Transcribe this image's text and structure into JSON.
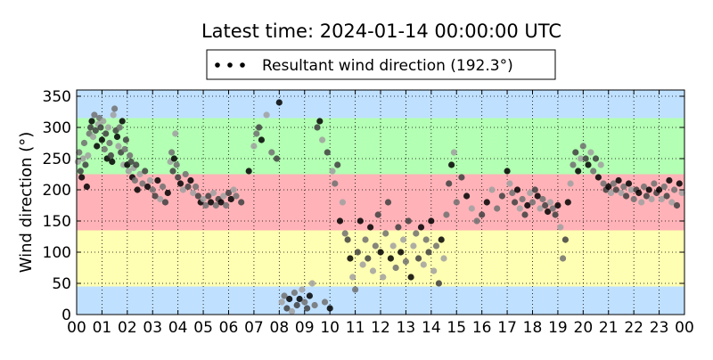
{
  "chart_data": {
    "type": "scatter",
    "title": "Latest time: 2024-01-14 00:00:00 UTC",
    "ylabel": "Wind direction (°)",
    "xlabel": "",
    "xlim": [
      0,
      24
    ],
    "ylim": [
      0,
      360
    ],
    "x_ticks": [
      0,
      1,
      2,
      3,
      4,
      5,
      6,
      7,
      8,
      9,
      10,
      11,
      12,
      13,
      14,
      15,
      16,
      17,
      18,
      19,
      20,
      21,
      22,
      23,
      24
    ],
    "x_tick_labels": [
      "00",
      "01",
      "02",
      "03",
      "04",
      "05",
      "06",
      "07",
      "08",
      "09",
      "10",
      "11",
      "12",
      "13",
      "14",
      "15",
      "16",
      "17",
      "18",
      "19",
      "20",
      "21",
      "22",
      "23",
      "00"
    ],
    "y_ticks": [
      0,
      50,
      100,
      150,
      200,
      250,
      300,
      350
    ],
    "y_tick_labels": [
      "0",
      "50",
      "100",
      "150",
      "200",
      "250",
      "300",
      "350"
    ],
    "grid": true,
    "legend": {
      "placement": "top-center",
      "entries": [
        {
          "label": "Resultant wind direction (192.3°)",
          "marker": "dots",
          "color": "#000000"
        }
      ]
    },
    "bands": [
      {
        "from": 0,
        "to": 45,
        "color": "#bfe0ff"
      },
      {
        "from": 45,
        "to": 135,
        "color": "#ffffb3"
      },
      {
        "from": 135,
        "to": 225,
        "color": "#ffb3b8"
      },
      {
        "from": 225,
        "to": 315,
        "color": "#b3ffb3"
      },
      {
        "from": 315,
        "to": 360,
        "color": "#bfe0ff"
      }
    ],
    "series": [
      {
        "marker_colors": [
          "#000000",
          "#404040",
          "#707070",
          "#a0a0a0"
        ],
        "points": [
          [
            0.05,
            245
          ],
          [
            0.1,
            260
          ],
          [
            0.15,
            230
          ],
          [
            0.2,
            220
          ],
          [
            0.25,
            250
          ],
          [
            0.3,
            275
          ],
          [
            0.35,
            240
          ],
          [
            0.4,
            205
          ],
          [
            0.45,
            255
          ],
          [
            0.5,
            290
          ],
          [
            0.55,
            300
          ],
          [
            0.6,
            310
          ],
          [
            0.65,
            285
          ],
          [
            0.7,
            320
          ],
          [
            0.75,
            295
          ],
          [
            0.8,
            270
          ],
          [
            0.85,
            305
          ],
          [
            0.9,
            315
          ],
          [
            0.95,
            300
          ],
          [
            1.0,
            280
          ],
          [
            1.05,
            310
          ],
          [
            1.1,
            265
          ],
          [
            1.15,
            290
          ],
          [
            1.2,
            250
          ],
          [
            1.25,
            300
          ],
          [
            1.3,
            275
          ],
          [
            1.35,
            255
          ],
          [
            1.4,
            245
          ],
          [
            1.45,
            320
          ],
          [
            1.5,
            330
          ],
          [
            1.55,
            295
          ],
          [
            1.6,
            285
          ],
          [
            1.65,
            270
          ],
          [
            1.7,
            300
          ],
          [
            1.75,
            260
          ],
          [
            1.8,
            310
          ],
          [
            1.85,
            240
          ],
          [
            1.9,
            265
          ],
          [
            1.95,
            280
          ],
          [
            2.0,
            240
          ],
          [
            2.05,
            230
          ],
          [
            2.1,
            255
          ],
          [
            2.15,
            245
          ],
          [
            2.2,
            220
          ],
          [
            2.25,
            235
          ],
          [
            2.3,
            215
          ],
          [
            2.35,
            240
          ],
          [
            2.4,
            200
          ],
          [
            2.5,
            225
          ],
          [
            2.6,
            210
          ],
          [
            2.7,
            230
          ],
          [
            2.8,
            205
          ],
          [
            2.9,
            215
          ],
          [
            3.0,
            200
          ],
          [
            3.1,
            190
          ],
          [
            3.2,
            215
          ],
          [
            3.3,
            185
          ],
          [
            3.4,
            205
          ],
          [
            3.5,
            180
          ],
          [
            3.6,
            195
          ],
          [
            3.7,
            245
          ],
          [
            3.75,
            260
          ],
          [
            3.8,
            230
          ],
          [
            3.85,
            250
          ],
          [
            3.9,
            290
          ],
          [
            3.95,
            240
          ],
          [
            4.0,
            220
          ],
          [
            4.1,
            210
          ],
          [
            4.2,
            200
          ],
          [
            4.3,
            225
          ],
          [
            4.4,
            205
          ],
          [
            4.5,
            215
          ],
          [
            4.6,
            195
          ],
          [
            4.7,
            205
          ],
          [
            4.8,
            190
          ],
          [
            4.9,
            180
          ],
          [
            5.0,
            185
          ],
          [
            5.1,
            175
          ],
          [
            5.2,
            190
          ],
          [
            5.3,
            180
          ],
          [
            5.4,
            195
          ],
          [
            5.5,
            175
          ],
          [
            5.6,
            185
          ],
          [
            5.7,
            180
          ],
          [
            5.8,
            190
          ],
          [
            5.9,
            175
          ],
          [
            6.0,
            195
          ],
          [
            6.1,
            185
          ],
          [
            6.2,
            200
          ],
          [
            6.3,
            190
          ],
          [
            6.5,
            180
          ],
          [
            6.8,
            230
          ],
          [
            7.0,
            270
          ],
          [
            7.1,
            290
          ],
          [
            7.2,
            300
          ],
          [
            7.3,
            280
          ],
          [
            7.5,
            320
          ],
          [
            7.7,
            260
          ],
          [
            7.9,
            250
          ],
          [
            8.0,
            340
          ],
          [
            8.1,
            20
          ],
          [
            8.2,
            30
          ],
          [
            8.3,
            10
          ],
          [
            8.4,
            25
          ],
          [
            8.5,
            5
          ],
          [
            8.6,
            35
          ],
          [
            8.7,
            15
          ],
          [
            8.8,
            25
          ],
          [
            8.9,
            40
          ],
          [
            9.0,
            20
          ],
          [
            9.1,
            10
          ],
          [
            9.2,
            30
          ],
          [
            9.3,
            50
          ],
          [
            9.4,
            15
          ],
          [
            9.5,
            300
          ],
          [
            9.6,
            310
          ],
          [
            9.7,
            280
          ],
          [
            9.8,
            20
          ],
          [
            9.9,
            260
          ],
          [
            10.0,
            10
          ],
          [
            10.1,
            230
          ],
          [
            10.2,
            210
          ],
          [
            10.3,
            240
          ],
          [
            10.4,
            150
          ],
          [
            10.5,
            180
          ],
          [
            10.6,
            130
          ],
          [
            10.7,
            120
          ],
          [
            10.8,
            90
          ],
          [
            10.9,
            60
          ],
          [
            11.0,
            40
          ],
          [
            11.1,
            100
          ],
          [
            11.2,
            150
          ],
          [
            11.3,
            80
          ],
          [
            11.4,
            120
          ],
          [
            11.5,
            90
          ],
          [
            11.6,
            140
          ],
          [
            11.7,
            70
          ],
          [
            11.8,
            110
          ],
          [
            11.9,
            160
          ],
          [
            12.0,
            100
          ],
          [
            12.1,
            60
          ],
          [
            12.2,
            130
          ],
          [
            12.3,
            180
          ],
          [
            12.4,
            90
          ],
          [
            12.5,
            110
          ],
          [
            12.6,
            75
          ],
          [
            12.7,
            140
          ],
          [
            12.8,
            100
          ],
          [
            12.9,
            120
          ],
          [
            13.0,
            85
          ],
          [
            13.1,
            150
          ],
          [
            13.2,
            60
          ],
          [
            13.3,
            110
          ],
          [
            13.4,
            130
          ],
          [
            13.5,
            90
          ],
          [
            13.6,
            140
          ],
          [
            13.7,
            80
          ],
          [
            13.8,
            120
          ],
          [
            13.9,
            100
          ],
          [
            14.0,
            150
          ],
          [
            14.1,
            70
          ],
          [
            14.2,
            110
          ],
          [
            14.3,
            50
          ],
          [
            14.4,
            120
          ],
          [
            14.5,
            90
          ],
          [
            14.6,
            160
          ],
          [
            14.7,
            210
          ],
          [
            14.8,
            240
          ],
          [
            14.9,
            260
          ],
          [
            15.0,
            180
          ],
          [
            15.2,
            220
          ],
          [
            15.4,
            190
          ],
          [
            15.6,
            170
          ],
          [
            15.8,
            150
          ],
          [
            16.0,
            160
          ],
          [
            16.2,
            180
          ],
          [
            16.4,
            200
          ],
          [
            16.6,
            170
          ],
          [
            16.8,
            190
          ],
          [
            17.0,
            230
          ],
          [
            17.1,
            210
          ],
          [
            17.2,
            195
          ],
          [
            17.3,
            180
          ],
          [
            17.4,
            200
          ],
          [
            17.5,
            170
          ],
          [
            17.6,
            185
          ],
          [
            17.7,
            160
          ],
          [
            17.8,
            175
          ],
          [
            17.9,
            195
          ],
          [
            18.0,
            180
          ],
          [
            18.1,
            200
          ],
          [
            18.2,
            190
          ],
          [
            18.3,
            170
          ],
          [
            18.4,
            185
          ],
          [
            18.5,
            175
          ],
          [
            18.6,
            165
          ],
          [
            18.7,
            180
          ],
          [
            18.8,
            170
          ],
          [
            18.9,
            160
          ],
          [
            19.0,
            175
          ],
          [
            19.1,
            140
          ],
          [
            19.2,
            90
          ],
          [
            19.3,
            120
          ],
          [
            19.4,
            180
          ],
          [
            19.5,
            210
          ],
          [
            19.6,
            240
          ],
          [
            19.7,
            260
          ],
          [
            19.8,
            230
          ],
          [
            19.9,
            250
          ],
          [
            20.0,
            270
          ],
          [
            20.1,
            250
          ],
          [
            20.2,
            240
          ],
          [
            20.3,
            260
          ],
          [
            20.4,
            230
          ],
          [
            20.5,
            250
          ],
          [
            20.6,
            220
          ],
          [
            20.7,
            240
          ],
          [
            20.8,
            210
          ],
          [
            20.9,
            200
          ],
          [
            21.0,
            205
          ],
          [
            21.1,
            195
          ],
          [
            21.2,
            210
          ],
          [
            21.3,
            200
          ],
          [
            21.4,
            215
          ],
          [
            21.5,
            195
          ],
          [
            21.6,
            205
          ],
          [
            21.7,
            190
          ],
          [
            21.8,
            210
          ],
          [
            21.9,
            200
          ],
          [
            22.0,
            185
          ],
          [
            22.1,
            200
          ],
          [
            22.2,
            195
          ],
          [
            22.3,
            180
          ],
          [
            22.4,
            205
          ],
          [
            22.5,
            190
          ],
          [
            22.6,
            200
          ],
          [
            22.7,
            185
          ],
          [
            22.8,
            210
          ],
          [
            22.9,
            195
          ],
          [
            23.0,
            200
          ],
          [
            23.1,
            185
          ],
          [
            23.2,
            205
          ],
          [
            23.3,
            190
          ],
          [
            23.4,
            215
          ],
          [
            23.5,
            180
          ],
          [
            23.6,
            200
          ],
          [
            23.7,
            175
          ],
          [
            23.8,
            210
          ],
          [
            23.9,
            195
          ]
        ]
      }
    ]
  }
}
